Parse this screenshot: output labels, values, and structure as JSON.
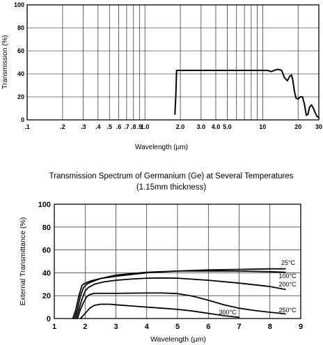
{
  "chart_data": [
    {
      "type": "line",
      "title": "",
      "xlabel": "Wavelength (μm)",
      "ylabel": "Transmission (%)",
      "x_scale": "log",
      "xlim": [
        0.1,
        30
      ],
      "ylim": [
        0,
        100
      ],
      "grid": true,
      "x_ticks": [
        0.1,
        0.2,
        0.3,
        0.4,
        0.5,
        0.6,
        0.7,
        0.8,
        0.9,
        1.0,
        2.0,
        3.0,
        4.0,
        5.0,
        10,
        20,
        30
      ],
      "x_tick_labels": [
        ".1",
        ".2",
        ".3",
        ".4",
        ".5",
        ".6",
        ".7",
        ".8",
        ".9",
        "1.0",
        "2.0",
        "3.0",
        "4.0",
        "5.0",
        "10",
        "20",
        "30"
      ],
      "y_ticks": [
        0,
        20,
        40,
        60,
        80,
        100
      ],
      "y_tick_labels": [
        "0",
        "20",
        "40",
        "60",
        "80",
        "100"
      ],
      "series": [
        {
          "x": [
            1.8,
            1.83,
            1.86,
            2.0,
            3.0,
            5.0,
            8.0,
            11.0,
            11.8,
            12.5,
            13.5,
            14.5,
            15.3,
            16.2,
            17.0,
            17.6,
            18.0,
            18.6,
            19.2,
            20.0,
            20.8,
            21.8,
            22.6,
            23.5,
            24.3,
            25.0,
            26.0,
            27.0,
            28.0,
            29.0,
            30.0
          ],
          "y": [
            5,
            20,
            43,
            43,
            43,
            43,
            43,
            43,
            42,
            43,
            44,
            43,
            37,
            34,
            38,
            39,
            35,
            25,
            19,
            18,
            20,
            20,
            14,
            4,
            5,
            11,
            13,
            10,
            6,
            3,
            2
          ]
        }
      ]
    },
    {
      "type": "line",
      "title": "Transmission Spectrum of Germanium (Ge) at Several Temperatures",
      "subtitle": "(1.15mm thickness)",
      "xlabel": "Wavelength (μm)",
      "ylabel": "External Transmittance (%)",
      "xlim": [
        1,
        9
      ],
      "ylim": [
        0,
        100
      ],
      "grid": true,
      "x_ticks": [
        1,
        2,
        3,
        4,
        5,
        6,
        7,
        8,
        9
      ],
      "y_ticks": [
        0,
        20,
        40,
        60,
        80,
        100
      ],
      "series": [
        {
          "name": "25°C",
          "x": [
            1.6,
            1.7,
            1.8,
            1.9,
            2.0,
            2.2,
            2.5,
            3.0,
            4.0,
            5.0,
            6.0,
            7.0,
            8.0,
            8.5
          ],
          "y": [
            0,
            8,
            20,
            29,
            31,
            33,
            35,
            37,
            40,
            41.5,
            42.5,
            43,
            43.5,
            43.5
          ]
        },
        {
          "name": "100°C",
          "x": [
            1.65,
            1.75,
            1.85,
            1.95,
            2.05,
            2.2,
            2.5,
            3.0,
            4.0,
            5.0,
            6.0,
            7.0,
            8.0,
            8.5
          ],
          "y": [
            0,
            8,
            20,
            27,
            30,
            32,
            35,
            38,
            40.5,
            41.5,
            41.5,
            41.5,
            41,
            40.5
          ]
        },
        {
          "name": "200°C",
          "x": [
            1.7,
            1.8,
            1.9,
            2.0,
            2.1,
            2.3,
            2.6,
            3.0,
            3.5,
            4.0,
            4.5,
            5.0,
            6.0,
            7.0,
            8.0,
            8.5
          ],
          "y": [
            0,
            8,
            17,
            24,
            27,
            30,
            32,
            33.5,
            34.5,
            35.3,
            35.5,
            35.3,
            33.5,
            31,
            28,
            25.5
          ]
        },
        {
          "name": "250°C",
          "x": [
            1.75,
            1.85,
            1.95,
            2.05,
            2.15,
            2.3,
            2.6,
            3.0,
            3.5,
            4.0,
            4.5,
            5.0,
            5.5,
            6.0,
            6.5,
            7.0,
            7.5,
            8.0,
            8.5
          ],
          "y": [
            0,
            8,
            14,
            19,
            21,
            22,
            22,
            22,
            22.2,
            22.3,
            22.3,
            21.8,
            19.5,
            16,
            12,
            9,
            7,
            5.5,
            4
          ]
        },
        {
          "name": "300°C",
          "x": [
            1.85,
            1.95,
            2.05,
            2.15,
            2.3,
            2.5,
            2.8,
            3.0,
            3.5,
            4.0,
            4.5,
            5.0,
            5.5,
            6.0,
            6.5,
            7.0
          ],
          "y": [
            0,
            3,
            6,
            9,
            11.5,
            12.5,
            12.5,
            12,
            11,
            10,
            9,
            8,
            6.5,
            4.5,
            2.5,
            1
          ]
        }
      ]
    }
  ]
}
